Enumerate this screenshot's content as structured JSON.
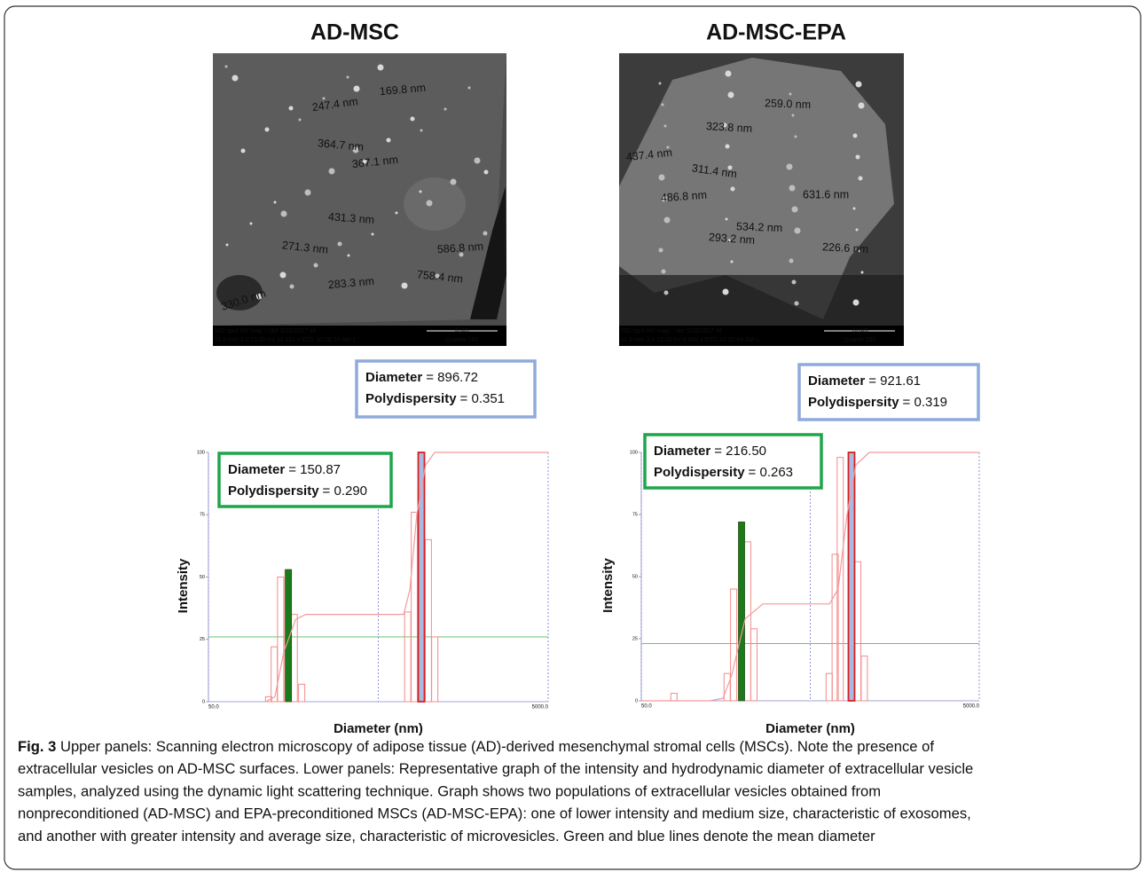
{
  "panels": [
    {
      "title": "AD-MSC",
      "sem": {
        "labels": [
          "247.4 nm",
          "169.8 nm",
          "364.7 nm",
          "367.1 nm",
          "431.3 nm",
          "271.3 nm",
          "586.8 nm",
          "283.3 nm",
          "758.4 nm",
          "330.0 nm"
        ],
        "footer": [
          "WD   spot   HV     mag □   det   9/28/2017   tilt",
          "11.9 mm  3.0  15.00 kV 12 011 x ETD 10:28:29 AM  1 °"
        ],
        "scale": "5 µm",
        "instrument": "Quanta 250"
      },
      "dls_boxes": [
        {
          "diameter_label": "Diameter",
          "diameter": "= 896.72",
          "pdi_label": "Polydispersity",
          "pdi": "= 0.351"
        },
        {
          "diameter_label": "Diameter",
          "diameter": "= 150.87",
          "pdi_label": "Polydispersity",
          "pdi": "= 0.290"
        }
      ]
    },
    {
      "title": "AD-MSC-EPA",
      "sem": {
        "labels": [
          "259.0 nm",
          "323.8 nm",
          "437.4 nm",
          "311.4 nm",
          "486.8 nm",
          "631.6 nm",
          "534.2 nm",
          "293.2 nm",
          "226.6 nm"
        ],
        "footer": [
          "WD   spot   HV     mag □   det   9/28/2017   tilt",
          "11.9 mm  3.0  15.00 kV 9 000 x ETD 10:32:49 AM  1 °"
        ],
        "scale": "10 µm",
        "instrument": "Quanta 250"
      },
      "dls_boxes": [
        {
          "diameter_label": "Diameter",
          "diameter": "= 921.61",
          "pdi_label": "Polydispersity",
          "pdi": "= 0.319"
        },
        {
          "diameter_label": "Diameter",
          "diameter": "= 216.50",
          "pdi_label": "Polydispersity",
          "pdi": "= 0.263"
        }
      ]
    }
  ],
  "chart_data": [
    {
      "type": "histogram",
      "xlabel": "Diameter (nm)",
      "ylabel": "Intensity",
      "log_x": true,
      "xlim": [
        50,
        5000
      ],
      "ylim": [
        0,
        100
      ],
      "xticks": [
        {
          "value": 50,
          "label": "50.0"
        },
        {
          "value": 500,
          "label": null
        },
        {
          "value": 5000,
          "label": "5000.0"
        }
      ],
      "yticks": [
        0,
        25,
        50,
        75,
        100
      ],
      "x": [
        113,
        122,
        133,
        147,
        160,
        177,
        745,
        815,
        896,
        985,
        1075
      ],
      "values": [
        2,
        22,
        50,
        53,
        35,
        7,
        36,
        76,
        100,
        65,
        26
      ],
      "color": "#f28b8b",
      "highlights": [
        {
          "x": 148,
          "value": 53,
          "color": "#1b7a1b"
        },
        {
          "x": 896,
          "value": 100,
          "color": "#a9b9e2"
        }
      ],
      "cumulative": {
        "x": [
          109,
          123,
          139,
          163,
          187,
          705,
          767,
          843,
          950,
          1074,
          5000
        ],
        "values": [
          0,
          2,
          20,
          33,
          35,
          35,
          45,
          75,
          95,
          100,
          100
        ],
        "color": "#f39a9a"
      },
      "reference_line": {
        "value": 26,
        "color": "#5cb85c"
      }
    },
    {
      "type": "histogram",
      "xlabel": "Diameter (nm)",
      "ylabel": "Intensity",
      "log_x": true,
      "xlim": [
        50,
        5000
      ],
      "ylim": [
        0,
        100
      ],
      "xticks": [
        {
          "value": 50,
          "label": "50.0"
        },
        {
          "value": 500,
          "label": null
        },
        {
          "value": 5000,
          "label": "5000.0"
        }
      ],
      "yticks": [
        0,
        25,
        50,
        75,
        100
      ],
      "x": [
        78,
        161,
        176,
        196,
        213,
        232,
        647,
        702,
        752,
        877,
        955,
        1044
      ],
      "values": [
        3,
        11,
        45,
        72,
        64,
        29,
        11,
        59,
        98,
        100,
        56,
        18
      ],
      "color": "#f28b8b",
      "highlights": [
        {
          "x": 196,
          "value": 72,
          "color": "#1b7a1b"
        },
        {
          "x": 877,
          "value": 100,
          "color": "#a9b9e2"
        }
      ],
      "cumulative": {
        "x": [
          50,
          127,
          152,
          171,
          206,
          262,
          649,
          731,
          826,
          931,
          1117,
          5000
        ],
        "values": [
          0,
          0,
          1,
          10,
          33,
          39,
          39,
          45,
          75,
          95,
          100,
          100
        ],
        "color": "#f39a9a"
      },
      "reference_line": {
        "value": 23,
        "color": "#5cb85c"
      }
    }
  ],
  "caption": {
    "label": "Fig. 3",
    "lines": [
      " Upper panels: Scanning electron microscopy of adipose tissue (AD)-derived mesenchymal stromal cells (MSCs). Note the presence of",
      "extracellular vesicles on AD-MSC surfaces. Lower panels: Representative graph of the intensity and hydrodynamic diameter of extracellular vesicle",
      "samples, analyzed using the dynamic light scattering technique. Graph shows two populations of extracellular vesicles obtained from",
      "nonpreconditioned (AD-MSC) and EPA-preconditioned MSCs (AD-MSC-EPA): one of lower intensity and medium size, characteristic of exosomes,",
      "and another with greater intensity and average size, characteristic of microvesicles. Green and blue lines denote the mean diameter"
    ]
  }
}
